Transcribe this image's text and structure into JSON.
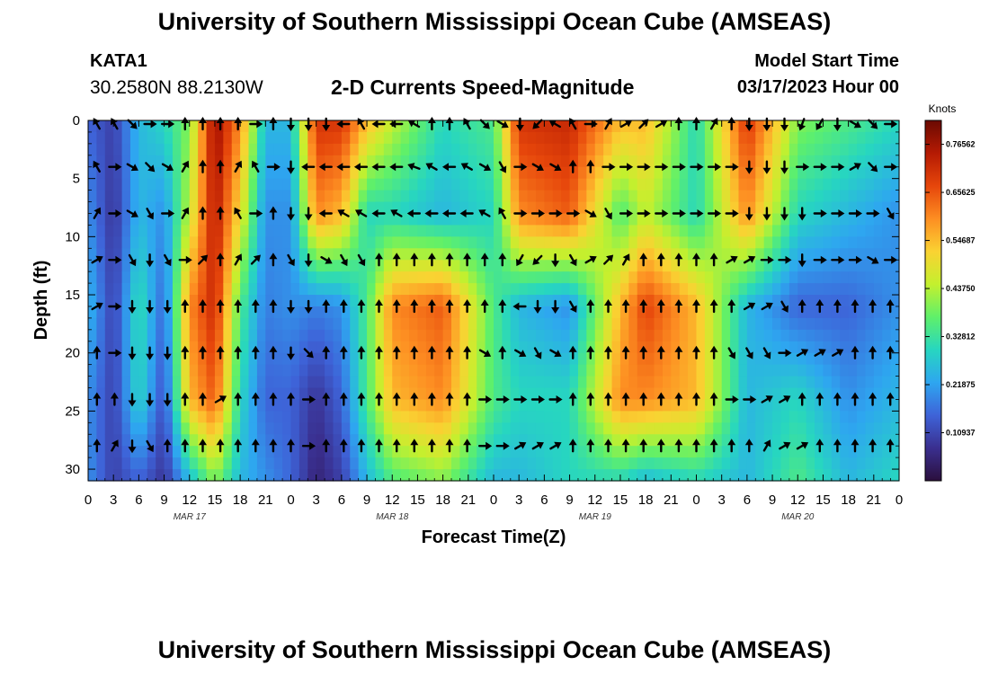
{
  "header": {
    "title": "University of Southern Mississippi Ocean Cube (AMSEAS)",
    "station": "KATA1",
    "coords": "30.2580N  88.2130W",
    "subtitle": "2-D Currents Speed-Magnitude",
    "model_start_label": "Model Start Time",
    "model_start_value": "03/17/2023 Hour 00"
  },
  "footer": {
    "title": "University of Southern Mississippi Ocean Cube (AMSEAS)"
  },
  "chart_data": {
    "type": "heatmap",
    "title": "2-D Currents Speed-Magnitude",
    "xlabel": "Forecast Time(Z)",
    "ylabel": "Depth (ft)",
    "x_range_hours": [
      0,
      96
    ],
    "y_range_ft": [
      0,
      31
    ],
    "y_inverted": true,
    "x_ticks": [
      "0",
      "3",
      "6",
      "9",
      "12",
      "15",
      "18",
      "21",
      "0",
      "3",
      "6",
      "9",
      "12",
      "15",
      "18",
      "21",
      "0",
      "3",
      "6",
      "9",
      "12",
      "15",
      "18",
      "21",
      "0",
      "3",
      "6",
      "9",
      "12",
      "15",
      "18",
      "21",
      "0"
    ],
    "y_ticks": [
      0,
      5,
      10,
      15,
      20,
      25,
      30
    ],
    "date_labels": [
      {
        "hour": 12,
        "label": "MAR 17"
      },
      {
        "hour": 36,
        "label": "MAR 18"
      },
      {
        "hour": 60,
        "label": "MAR 19"
      },
      {
        "hour": 84,
        "label": "MAR 20"
      }
    ],
    "colorbar": {
      "unit": "Knots",
      "min": 0.0,
      "max": 0.82,
      "tick_values": [
        0.109375,
        0.21875,
        0.328125,
        0.4375,
        0.546875,
        0.65625,
        0.765625
      ],
      "tick_labels": [
        "0.10937",
        "0.21875",
        "0.32812",
        "0.43750",
        "0.54687",
        "0.65625",
        "0.76562"
      ],
      "colors": [
        "#2b0f3d",
        "#3a2f8f",
        "#3e63d8",
        "#2ea6f0",
        "#27d6c0",
        "#5ff06a",
        "#c4f02e",
        "#fad232",
        "#fd8e22",
        "#e6460b",
        "#b51a03",
        "#6b0a02"
      ]
    },
    "vector_rows_ft": [
      0,
      4,
      8,
      12,
      16,
      20,
      24,
      28
    ],
    "speed_knots_by_hour": [
      {
        "hour": 0,
        "depth_ft": [
          0,
          8,
          16,
          24,
          31
        ],
        "speed": [
          0.15,
          0.2,
          0.25,
          0.2,
          0.2
        ]
      },
      {
        "hour": 3,
        "depth_ft": [
          0,
          8,
          16,
          24,
          31
        ],
        "speed": [
          0.1,
          0.08,
          0.1,
          0.1,
          0.1
        ]
      },
      {
        "hour": 6,
        "depth_ft": [
          0,
          8,
          16,
          24,
          31
        ],
        "speed": [
          0.25,
          0.25,
          0.32,
          0.3,
          0.15
        ]
      },
      {
        "hour": 9,
        "depth_ft": [
          0,
          8,
          16,
          24,
          31
        ],
        "speed": [
          0.3,
          0.2,
          0.15,
          0.12,
          0.08
        ]
      },
      {
        "hour": 12,
        "depth_ft": [
          0,
          8,
          16,
          24,
          31
        ],
        "speed": [
          0.4,
          0.45,
          0.6,
          0.55,
          0.25
        ]
      },
      {
        "hour": 15,
        "depth_ft": [
          0,
          8,
          16,
          24,
          31
        ],
        "speed": [
          0.78,
          0.75,
          0.72,
          0.65,
          0.4
        ]
      },
      {
        "hour": 18,
        "depth_ft": [
          0,
          8,
          16,
          24,
          31
        ],
        "speed": [
          0.6,
          0.5,
          0.35,
          0.3,
          0.25
        ]
      },
      {
        "hour": 21,
        "depth_ft": [
          0,
          8,
          16,
          24,
          31
        ],
        "speed": [
          0.25,
          0.2,
          0.18,
          0.15,
          0.2
        ]
      },
      {
        "hour": 24,
        "depth_ft": [
          0,
          8,
          16,
          24,
          31
        ],
        "speed": [
          0.25,
          0.2,
          0.2,
          0.15,
          0.15
        ]
      },
      {
        "hour": 27,
        "depth_ft": [
          0,
          8,
          16,
          24,
          31
        ],
        "speed": [
          0.7,
          0.6,
          0.18,
          0.08,
          0.05
        ]
      },
      {
        "hour": 30,
        "depth_ft": [
          0,
          8,
          16,
          24,
          31
        ],
        "speed": [
          0.7,
          0.55,
          0.2,
          0.15,
          0.1
        ]
      },
      {
        "hour": 33,
        "depth_ft": [
          0,
          8,
          16,
          24,
          31
        ],
        "speed": [
          0.55,
          0.3,
          0.35,
          0.35,
          0.25
        ]
      },
      {
        "hour": 36,
        "depth_ft": [
          0,
          8,
          16,
          24,
          31
        ],
        "speed": [
          0.45,
          0.3,
          0.6,
          0.55,
          0.35
        ]
      },
      {
        "hour": 42,
        "depth_ft": [
          0,
          8,
          16,
          24,
          31
        ],
        "speed": [
          0.3,
          0.25,
          0.65,
          0.6,
          0.4
        ]
      },
      {
        "hour": 48,
        "depth_ft": [
          0,
          8,
          16,
          24,
          31
        ],
        "speed": [
          0.35,
          0.3,
          0.35,
          0.35,
          0.25
        ]
      },
      {
        "hour": 51,
        "depth_ft": [
          0,
          8,
          16,
          24,
          31
        ],
        "speed": [
          0.7,
          0.6,
          0.25,
          0.3,
          0.25
        ]
      },
      {
        "hour": 57,
        "depth_ft": [
          0,
          8,
          16,
          24,
          31
        ],
        "speed": [
          0.72,
          0.65,
          0.2,
          0.3,
          0.3
        ]
      },
      {
        "hour": 63,
        "depth_ft": [
          0,
          8,
          16,
          24,
          31
        ],
        "speed": [
          0.55,
          0.35,
          0.55,
          0.6,
          0.3
        ]
      },
      {
        "hour": 66,
        "depth_ft": [
          0,
          8,
          16,
          24,
          31
        ],
        "speed": [
          0.55,
          0.45,
          0.68,
          0.6,
          0.25
        ]
      },
      {
        "hour": 72,
        "depth_ft": [
          0,
          8,
          16,
          24,
          31
        ],
        "speed": [
          0.3,
          0.3,
          0.55,
          0.55,
          0.3
        ]
      },
      {
        "hour": 78,
        "depth_ft": [
          0,
          8,
          16,
          24,
          31
        ],
        "speed": [
          0.7,
          0.6,
          0.25,
          0.25,
          0.25
        ]
      },
      {
        "hour": 84,
        "depth_ft": [
          0,
          8,
          16,
          24,
          31
        ],
        "speed": [
          0.4,
          0.3,
          0.15,
          0.3,
          0.35
        ]
      },
      {
        "hour": 90,
        "depth_ft": [
          0,
          8,
          16,
          24,
          31
        ],
        "speed": [
          0.35,
          0.25,
          0.15,
          0.2,
          0.25
        ]
      },
      {
        "hour": 96,
        "depth_ft": [
          0,
          8,
          16,
          24,
          31
        ],
        "speed": [
          0.3,
          0.2,
          0.2,
          0.25,
          0.3
        ]
      }
    ],
    "vector_directions_deg": [
      [
        330,
        330,
        135,
        90,
        90,
        0,
        0,
        0,
        0,
        90,
        0,
        180,
        180,
        180,
        270,
        330,
        270,
        270,
        300,
        0,
        0,
        330,
        135,
        120,
        180,
        225,
        300,
        330,
        90,
        30,
        60,
        45,
        60,
        0,
        0,
        30,
        0,
        180,
        180,
        180,
        200,
        210,
        180,
        120,
        135,
        90
      ],
      [
        330,
        90,
        120,
        135,
        120,
        30,
        0,
        0,
        30,
        330,
        90,
        180,
        270,
        270,
        270,
        270,
        270,
        270,
        290,
        300,
        270,
        300,
        120,
        150,
        90,
        120,
        120,
        0,
        0,
        90,
        90,
        90,
        90,
        90,
        90,
        90,
        90,
        180,
        180,
        180,
        90,
        90,
        90,
        60,
        135,
        90
      ],
      [
        30,
        90,
        120,
        150,
        90,
        30,
        0,
        0,
        330,
        90,
        0,
        180,
        180,
        270,
        300,
        300,
        270,
        300,
        270,
        270,
        270,
        270,
        300,
        330,
        90,
        90,
        90,
        90,
        120,
        150,
        90,
        90,
        90,
        90,
        90,
        90,
        90,
        180,
        180,
        180,
        180,
        90,
        90,
        90,
        90,
        150
      ],
      [
        60,
        90,
        150,
        180,
        150,
        90,
        45,
        0,
        30,
        45,
        0,
        150,
        180,
        120,
        150,
        150,
        0,
        0,
        0,
        0,
        0,
        0,
        0,
        0,
        210,
        225,
        180,
        150,
        60,
        45,
        30,
        0,
        0,
        0,
        0,
        0,
        60,
        60,
        90,
        90,
        180,
        90,
        90,
        90,
        120,
        90
      ],
      [
        60,
        90,
        180,
        180,
        180,
        0,
        0,
        0,
        0,
        0,
        0,
        180,
        180,
        0,
        0,
        0,
        0,
        0,
        0,
        0,
        0,
        0,
        0,
        0,
        270,
        180,
        180,
        150,
        0,
        0,
        0,
        0,
        0,
        0,
        0,
        0,
        0,
        60,
        60,
        150,
        0,
        0,
        0,
        0,
        0,
        0
      ],
      [
        0,
        90,
        180,
        180,
        180,
        0,
        0,
        0,
        0,
        0,
        0,
        180,
        135,
        0,
        0,
        0,
        0,
        0,
        0,
        0,
        0,
        0,
        120,
        0,
        120,
        150,
        120,
        0,
        0,
        0,
        0,
        0,
        0,
        0,
        0,
        0,
        150,
        150,
        150,
        90,
        60,
        60,
        60,
        0,
        0,
        0
      ],
      [
        0,
        0,
        180,
        180,
        180,
        0,
        0,
        60,
        0,
        0,
        0,
        0,
        90,
        0,
        0,
        0,
        0,
        0,
        0,
        0,
        0,
        0,
        90,
        90,
        90,
        90,
        90,
        0,
        0,
        0,
        0,
        0,
        0,
        0,
        0,
        0,
        90,
        90,
        60,
        60,
        0,
        0,
        0,
        0,
        0,
        0
      ],
      [
        0,
        30,
        180,
        150,
        0,
        0,
        0,
        0,
        0,
        0,
        0,
        0,
        90,
        0,
        0,
        0,
        0,
        0,
        0,
        0,
        0,
        0,
        90,
        90,
        60,
        60,
        60,
        0,
        0,
        0,
        0,
        0,
        0,
        0,
        0,
        0,
        0,
        0,
        30,
        60,
        60,
        0,
        0,
        0,
        0,
        0
      ]
    ]
  }
}
